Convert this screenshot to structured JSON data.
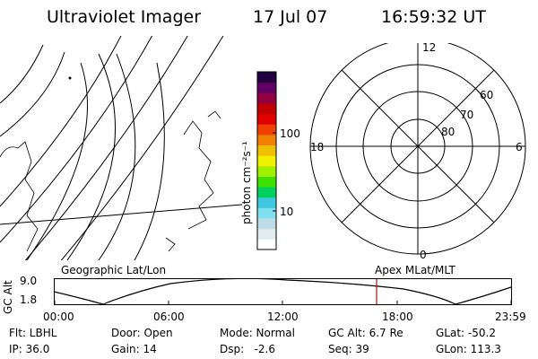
{
  "header": {
    "instrument": "Ultraviolet Imager",
    "date": "17 Jul 07",
    "time": "16:59:32 UT"
  },
  "colorbar": {
    "unit_label": "photon cm⁻²s⁻¹",
    "ticks": [
      "100",
      "10"
    ],
    "colors": [
      "#ffffff",
      "#e0ecf0",
      "#c0dce8",
      "#80e0f0",
      "#40c8e0",
      "#00d060",
      "#40e000",
      "#a0f000",
      "#f0f000",
      "#f0c000",
      "#f08000",
      "#f04000",
      "#e00000",
      "#c00000",
      "#900040",
      "#600060",
      "#200040"
    ]
  },
  "left_panel": {
    "label": "Geographic Lat/Lon"
  },
  "polar_panel": {
    "label": "Apex MLat/MLT",
    "mlt_labels": {
      "top": "12",
      "left": "18",
      "right": "6",
      "bottom": "0"
    },
    "lat_labels": [
      "60",
      "70",
      "80"
    ]
  },
  "altitude_plot": {
    "axis_label": "GC Alt",
    "y_ticks": [
      "9.0",
      "1.8"
    ],
    "x_ticks": [
      "00:00",
      "06:00",
      "12:00",
      "18:00",
      "23:59"
    ],
    "current_marker_time": "16:59"
  },
  "status": {
    "flt": "Flt: LBHL",
    "door": "Door: Open",
    "mode": "Mode: Normal",
    "gc_alt": "GC Alt: 6.7 Re",
    "glat": "GLat: -50.2",
    "ip": "IP: 36.0",
    "gain": "Gain: 14",
    "dsp": "Dsp:   -2.6",
    "seq": "Seq: 39",
    "glon": "GLon: 113.3"
  }
}
